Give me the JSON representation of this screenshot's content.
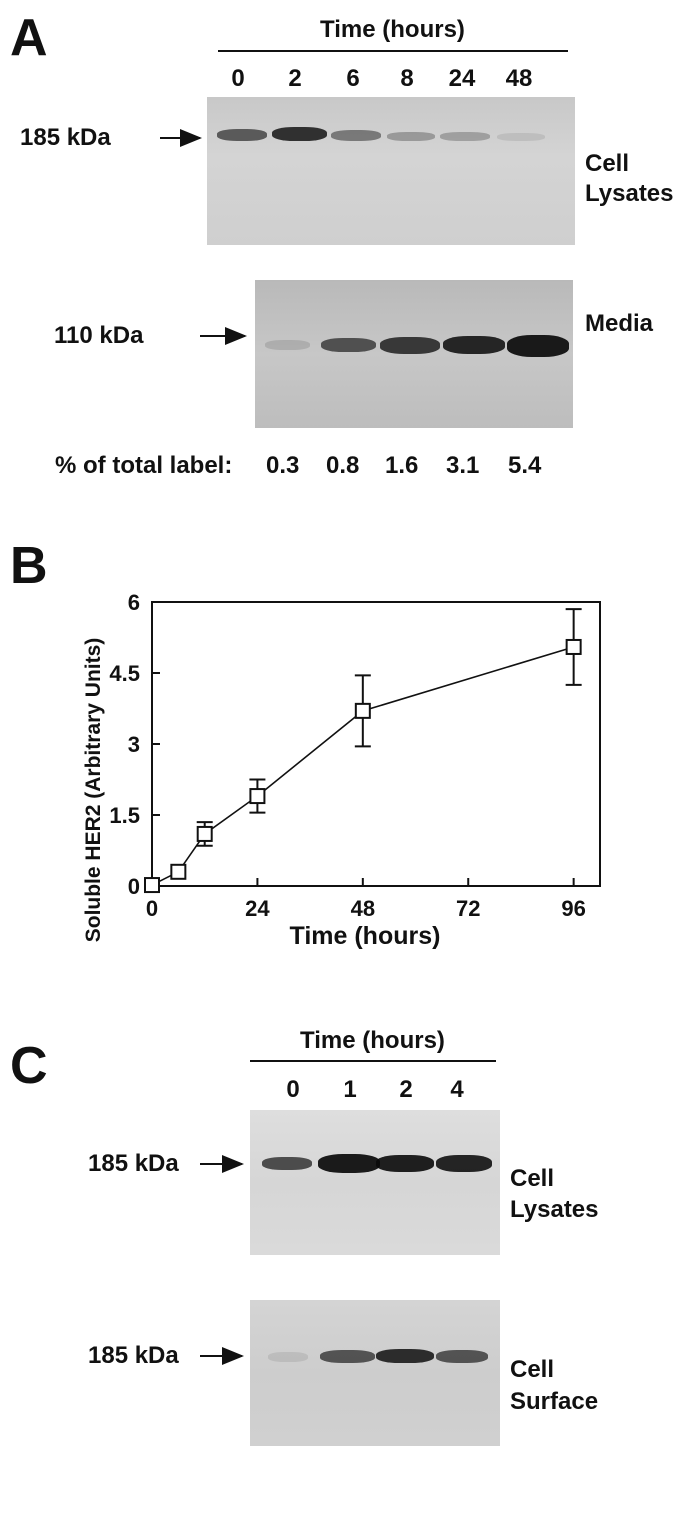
{
  "panel_a": {
    "letter": "A",
    "time_header": "Time (hours)",
    "lanes": [
      "0",
      "2",
      "6",
      "8",
      "24",
      "48"
    ],
    "lysate_marker": "185 kDa",
    "lysate_label_1": "Cell",
    "lysate_label_2": "Lysates",
    "media_marker": "110 kDa",
    "media_label": "Media",
    "pct_label": "% of total label:",
    "pct_values": [
      "0.3",
      "0.8",
      "1.6",
      "3.1",
      "5.4"
    ]
  },
  "panel_b": {
    "letter": "B",
    "chart_data": {
      "type": "line",
      "title": "",
      "xlabel": "Time (hours)",
      "ylabel": "Soluble HER2 (Arbitrary Units)",
      "xlim": [
        0,
        102
      ],
      "ylim": [
        0,
        6
      ],
      "xticks": [
        0,
        24,
        48,
        72,
        96
      ],
      "yticks": [
        0,
        1.5,
        3,
        4.5,
        6
      ],
      "ytick_labels": [
        "0",
        "1.5",
        "3",
        "4.5",
        "6"
      ],
      "x": [
        0,
        6,
        12,
        24,
        48,
        96
      ],
      "y": [
        0.02,
        0.3,
        1.1,
        1.9,
        3.7,
        5.05
      ],
      "error": [
        0,
        0,
        0.25,
        0.35,
        0.75,
        0.8
      ],
      "marker": "open-square"
    }
  },
  "panel_c": {
    "letter": "C",
    "time_header": "Time (hours)",
    "lanes": [
      "0",
      "1",
      "2",
      "4"
    ],
    "lysate_marker": "185 kDa",
    "lysate_label_1": "Cell",
    "lysate_label_2": "Lysates",
    "surface_marker": "185 kDa",
    "surface_label_1": "Cell",
    "surface_label_2": "Surface"
  }
}
